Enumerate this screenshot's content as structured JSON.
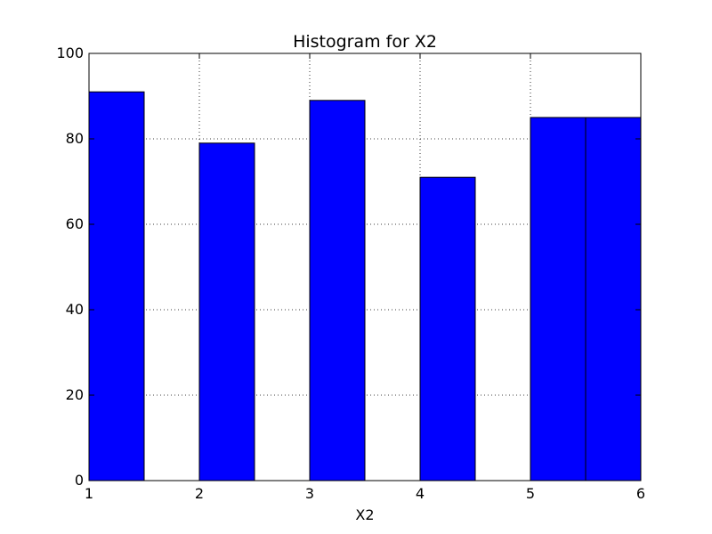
{
  "chart_data": {
    "type": "bar",
    "title": "Histogram for X2",
    "xlabel": "X2",
    "ylabel": "",
    "xlim": [
      1,
      6
    ],
    "ylim": [
      0,
      100
    ],
    "x_ticks": [
      1,
      2,
      3,
      4,
      5,
      6
    ],
    "x_tick_labels": [
      "1",
      "2",
      "3",
      "4",
      "5",
      "6"
    ],
    "y_ticks": [
      0,
      20,
      40,
      60,
      80,
      100
    ],
    "y_tick_labels": [
      "0",
      "20",
      "40",
      "60",
      "80",
      "100"
    ],
    "grid": true,
    "bins": [
      {
        "start": 1.0,
        "end": 1.5,
        "value": 91
      },
      {
        "start": 1.5,
        "end": 2.0,
        "value": 0
      },
      {
        "start": 2.0,
        "end": 2.5,
        "value": 79
      },
      {
        "start": 2.5,
        "end": 3.0,
        "value": 0
      },
      {
        "start": 3.0,
        "end": 3.5,
        "value": 89
      },
      {
        "start": 3.5,
        "end": 4.0,
        "value": 0
      },
      {
        "start": 4.0,
        "end": 4.5,
        "value": 71
      },
      {
        "start": 4.5,
        "end": 5.0,
        "value": 0
      },
      {
        "start": 5.0,
        "end": 5.5,
        "value": 85
      },
      {
        "start": 5.5,
        "end": 6.0,
        "value": 85
      }
    ],
    "colors": {
      "bar_fill": "#0000ff",
      "bar_edge": "#000000",
      "background": "#ffffff"
    }
  }
}
